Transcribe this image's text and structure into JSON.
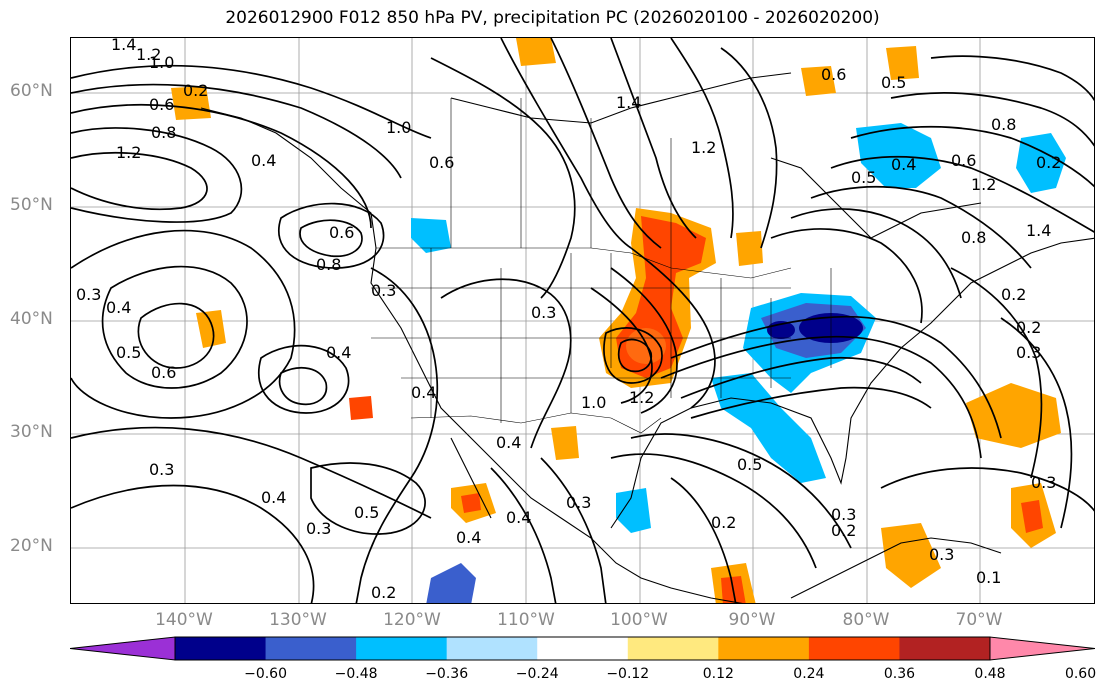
{
  "title": "2026012900 F012 850 hPa PV, precipitation PC (2026020100 - 2026020200)",
  "lat_labels": [
    "60°N",
    "50°N",
    "40°N",
    "30°N",
    "20°N"
  ],
  "lon_labels": [
    "140°W",
    "130°W",
    "120°W",
    "110°W",
    "100°W",
    "90°W",
    "80°W",
    "70°W"
  ],
  "colorbar": {
    "ticks": [
      "−0.60",
      "−0.48",
      "−0.36",
      "−0.24",
      "−0.12",
      "0.12",
      "0.24",
      "0.36",
      "0.48",
      "0.60"
    ],
    "colors": [
      "#9b30d6",
      "#00008b",
      "#3a5fcd",
      "#00bfff",
      "#b0e2ff",
      "#ffffff",
      "#ffe97f",
      "#ffa500",
      "#ff4500",
      "#b22222",
      "#ff88aa"
    ]
  },
  "contour_labels": [
    "1.4",
    "1.2",
    "1.0",
    "0.2",
    "0.6",
    "0.8",
    "1.2",
    "0.4",
    "0.8",
    "0.6",
    "0.4",
    "0.5",
    "0.6",
    "0.3",
    "0.3",
    "0.4",
    "0.4",
    "0.3",
    "0.5",
    "0.4",
    "0.3",
    "0.2",
    "0.4",
    "0.6",
    "1.0",
    "1.2",
    "1.4",
    "0.3",
    "0.3",
    "0.5",
    "0.2",
    "0.2",
    "0.4",
    "0.4",
    "0.3",
    "1.0",
    "1.2",
    "0.6",
    "0.5",
    "0.6",
    "0.8",
    "1.2",
    "0.8",
    "1.4",
    "0.2",
    "0.2",
    "0.3",
    "0.3",
    "0.5",
    "0.3",
    "0.4",
    "0.2",
    "0.1"
  ]
}
